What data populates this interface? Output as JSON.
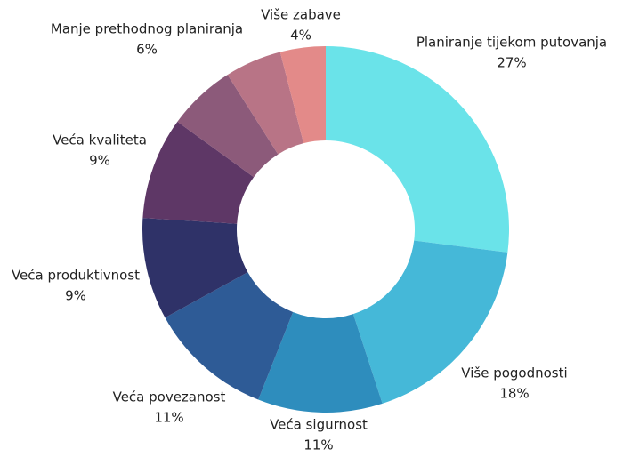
{
  "chart_data": {
    "type": "donut",
    "categories": [
      "Planiranje tijekom putovanja",
      "Više pogodnosti",
      "Veća sigurnost",
      "Veća povezanost",
      "Veća produktivnost",
      "Veća kvaliteta",
      "Manje prethodnog planiranja",
      null,
      "Više zabave"
    ],
    "values": [
      27,
      18,
      11,
      11,
      9,
      9,
      6,
      5,
      4
    ],
    "value_labels": [
      "27%",
      "18%",
      "11%",
      "11%",
      "9%",
      "9%",
      "6%",
      null,
      "4%"
    ],
    "colors": [
      "#6ae3e9",
      "#45b8d8",
      "#2e8dbd",
      "#2e5b96",
      "#2f3268",
      "#5e3766",
      "#8c5a7a",
      "#b87486",
      "#e38a89"
    ]
  }
}
